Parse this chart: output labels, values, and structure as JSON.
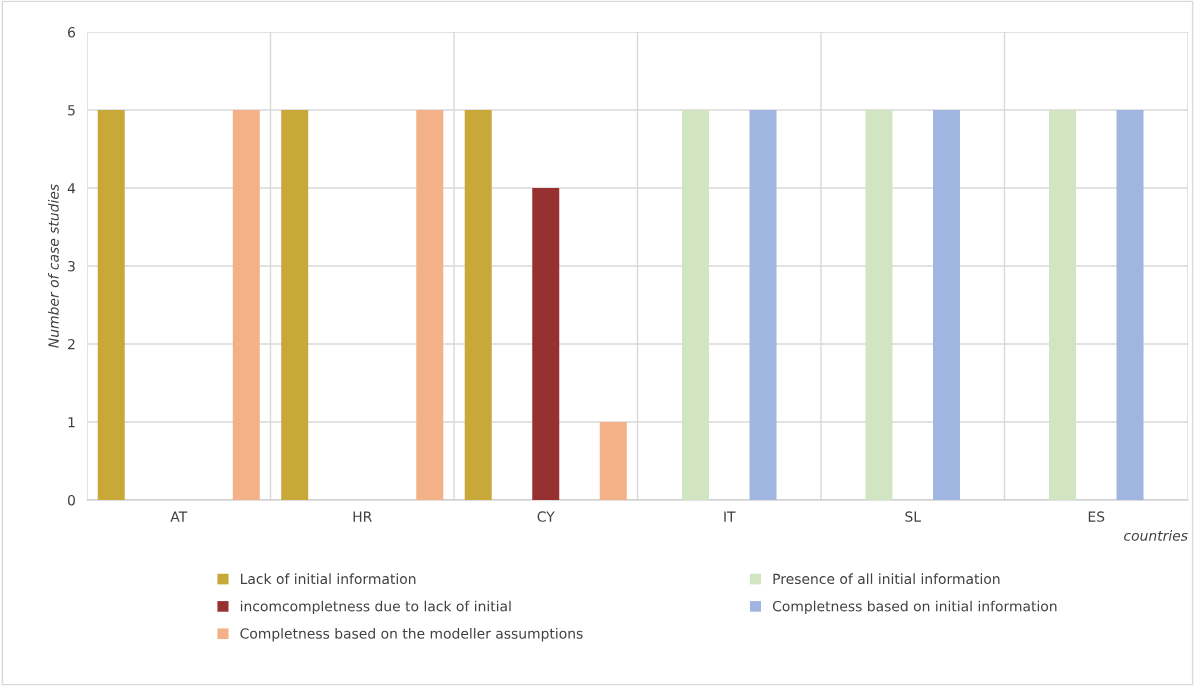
{
  "chart_data": {
    "type": "bar",
    "ylabel": "Number of case studies",
    "xlabel": "countries",
    "categories": [
      "AT",
      "HR",
      "CY",
      "IT",
      "SL",
      "ES"
    ],
    "series": [
      {
        "name": "Lack of initial information",
        "color": "#c9a83a",
        "values": [
          5,
          5,
          5,
          0,
          0,
          0
        ]
      },
      {
        "name": "Presence of all initial information",
        "color": "#d1e5c2",
        "values": [
          0,
          0,
          0,
          5,
          5,
          5
        ]
      },
      {
        "name": "incomcompletness due to lack of initial",
        "color": "#973131",
        "values": [
          0,
          0,
          4,
          0,
          0,
          0
        ]
      },
      {
        "name": "Completness based on initial information",
        "color": "#a0b6e1",
        "values": [
          0,
          0,
          0,
          5,
          5,
          5
        ]
      },
      {
        "name": "Completness based on the modeller assumptions",
        "color": "#f4b187",
        "values": [
          5,
          5,
          1,
          0,
          0,
          0
        ]
      }
    ],
    "ylim": [
      0,
      6
    ],
    "yticks": [
      0,
      1,
      2,
      3,
      4,
      5,
      6
    ],
    "grid": true,
    "legend": "bottom"
  }
}
